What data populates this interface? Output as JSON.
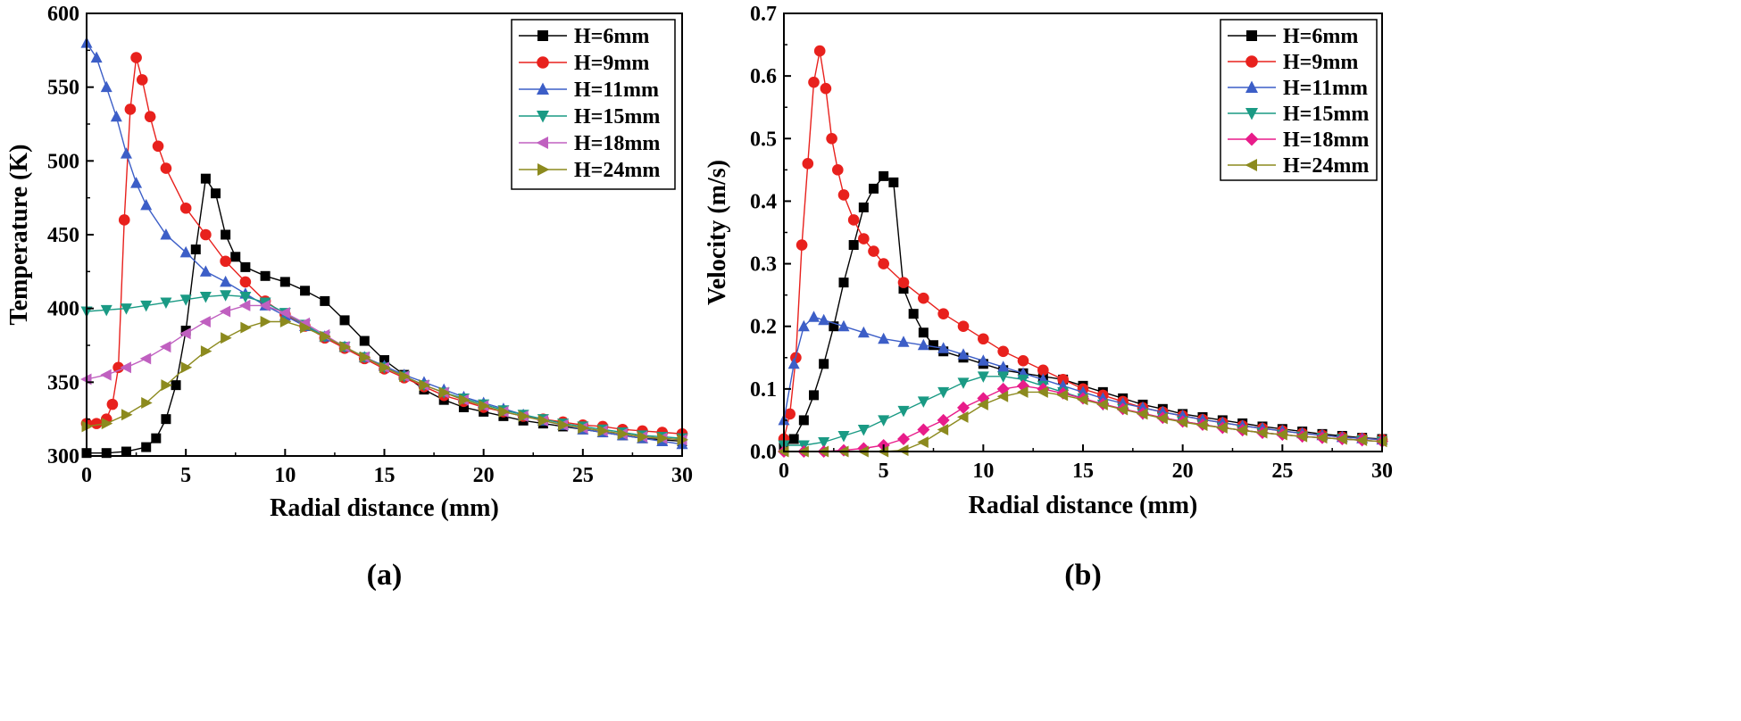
{
  "chart_data": [
    {
      "type": "line",
      "caption": "(a)",
      "xlabel": "Radial distance (mm)",
      "ylabel": "Temperature (K)",
      "xlim": [
        0,
        30
      ],
      "ylim": [
        300,
        600
      ],
      "xticks": [
        0,
        5,
        10,
        15,
        20,
        25,
        30
      ],
      "yticks": [
        300,
        350,
        400,
        450,
        500,
        550,
        600
      ],
      "grid": false,
      "legend_position": "top-right",
      "series": [
        {
          "name": "H=6mm",
          "color": "#000000",
          "marker": "square",
          "x": [
            0,
            1,
            2,
            3,
            3.5,
            4,
            4.5,
            5,
            5.5,
            6,
            6.5,
            7,
            7.5,
            8,
            9,
            10,
            11,
            12,
            13,
            14,
            15,
            16,
            17,
            18,
            19,
            20,
            21,
            22,
            23,
            24,
            25,
            26,
            27,
            28,
            29,
            30
          ],
          "y": [
            302,
            302,
            303,
            306,
            312,
            325,
            348,
            385,
            440,
            488,
            478,
            450,
            435,
            428,
            422,
            418,
            412,
            405,
            392,
            378,
            365,
            355,
            345,
            338,
            333,
            330,
            327,
            324,
            322,
            320,
            318,
            316,
            314,
            312,
            311,
            310
          ]
        },
        {
          "name": "H=9mm",
          "color": "#e8211d",
          "marker": "circle",
          "x": [
            0,
            0.5,
            1,
            1.3,
            1.6,
            1.9,
            2.2,
            2.5,
            2.8,
            3.2,
            3.6,
            4,
            5,
            6,
            7,
            8,
            9,
            10,
            11,
            12,
            13,
            14,
            15,
            16,
            17,
            18,
            19,
            20,
            21,
            22,
            23,
            24,
            25,
            26,
            27,
            28,
            29,
            30
          ],
          "y": [
            322,
            322,
            325,
            335,
            360,
            460,
            535,
            570,
            555,
            530,
            510,
            495,
            468,
            450,
            432,
            418,
            405,
            396,
            388,
            380,
            373,
            366,
            359,
            353,
            347,
            341,
            337,
            333,
            330,
            327,
            325,
            323,
            321,
            320,
            318,
            317,
            316,
            315
          ]
        },
        {
          "name": "H=11mm",
          "color": "#3c5ec7",
          "marker": "triangle-up",
          "x": [
            0,
            0.5,
            1,
            1.5,
            2,
            2.5,
            3,
            4,
            5,
            6,
            7,
            8,
            9,
            10,
            11,
            12,
            13,
            14,
            15,
            16,
            17,
            18,
            19,
            20,
            21,
            22,
            23,
            24,
            25,
            26,
            27,
            28,
            29,
            30
          ],
          "y": [
            580,
            570,
            550,
            530,
            505,
            485,
            470,
            450,
            438,
            425,
            418,
            410,
            402,
            395,
            388,
            381,
            374,
            367,
            361,
            355,
            350,
            345,
            340,
            336,
            332,
            328,
            324,
            321,
            318,
            316,
            314,
            312,
            310,
            308
          ]
        },
        {
          "name": "H=15mm",
          "color": "#1a9a84",
          "marker": "triangle-down",
          "x": [
            0,
            1,
            2,
            3,
            4,
            5,
            6,
            7,
            8,
            9,
            10,
            11,
            12,
            13,
            14,
            15,
            16,
            17,
            18,
            19,
            20,
            21,
            22,
            23,
            24,
            25,
            26,
            27,
            28,
            29,
            30
          ],
          "y": [
            398,
            399,
            400,
            402,
            404,
            406,
            408,
            409,
            408,
            404,
            397,
            389,
            381,
            374,
            367,
            360,
            354,
            348,
            343,
            339,
            335,
            331,
            328,
            325,
            322,
            320,
            318,
            316,
            314,
            313,
            312
          ]
        },
        {
          "name": "H=18mm",
          "color": "#c060c0",
          "marker": "triangle-left",
          "x": [
            0,
            1,
            2,
            3,
            4,
            5,
            6,
            7,
            8,
            9,
            10,
            11,
            12,
            13,
            14,
            15,
            16,
            17,
            18,
            19,
            20,
            21,
            22,
            23,
            24,
            25,
            26,
            27,
            28,
            29,
            30
          ],
          "y": [
            352,
            355,
            360,
            366,
            374,
            383,
            391,
            398,
            402,
            402,
            397,
            390,
            382,
            374,
            367,
            360,
            354,
            348,
            343,
            338,
            334,
            330,
            327,
            324,
            321,
            319,
            317,
            315,
            313,
            312,
            311
          ]
        },
        {
          "name": "H=24mm",
          "color": "#8c8a1e",
          "marker": "triangle-right",
          "x": [
            0,
            1,
            2,
            3,
            4,
            5,
            6,
            7,
            8,
            9,
            10,
            11,
            12,
            13,
            14,
            15,
            16,
            17,
            18,
            19,
            20,
            21,
            22,
            23,
            24,
            25,
            26,
            27,
            28,
            29,
            30
          ],
          "y": [
            320,
            322,
            328,
            336,
            348,
            360,
            371,
            380,
            387,
            391,
            391,
            387,
            381,
            374,
            367,
            360,
            354,
            348,
            343,
            338,
            334,
            330,
            327,
            324,
            321,
            319,
            317,
            315,
            313,
            312,
            311
          ]
        }
      ]
    },
    {
      "type": "line",
      "caption": "(b)",
      "xlabel": "Radial distance (mm)",
      "ylabel": "Velocity (m/s)",
      "xlim": [
        0,
        30
      ],
      "ylim": [
        0,
        0.7
      ],
      "xticks": [
        0,
        5,
        10,
        15,
        20,
        25,
        30
      ],
      "yticks": [
        0.0,
        0.1,
        0.2,
        0.3,
        0.4,
        0.5,
        0.6,
        0.7
      ],
      "ytick_labels": [
        "0.0",
        "0.1",
        "0.2",
        "0.3",
        "0.4",
        "0.5",
        "0.6",
        "0.7"
      ],
      "grid": false,
      "legend_position": "top-right",
      "series": [
        {
          "name": "H=6mm",
          "color": "#000000",
          "marker": "square",
          "x": [
            0,
            0.5,
            1,
            1.5,
            2,
            2.5,
            3,
            3.5,
            4,
            4.5,
            5,
            5.5,
            6,
            6.5,
            7,
            7.5,
            8,
            9,
            10,
            11,
            12,
            13,
            14,
            15,
            16,
            17,
            18,
            19,
            20,
            21,
            22,
            23,
            24,
            25,
            26,
            27,
            28,
            29,
            30
          ],
          "y": [
            0.01,
            0.02,
            0.05,
            0.09,
            0.14,
            0.2,
            0.27,
            0.33,
            0.39,
            0.42,
            0.44,
            0.43,
            0.26,
            0.22,
            0.19,
            0.17,
            0.16,
            0.15,
            0.14,
            0.13,
            0.125,
            0.12,
            0.115,
            0.105,
            0.095,
            0.085,
            0.075,
            0.068,
            0.06,
            0.055,
            0.05,
            0.045,
            0.04,
            0.036,
            0.032,
            0.028,
            0.025,
            0.022,
            0.02
          ]
        },
        {
          "name": "H=9mm",
          "color": "#e8211d",
          "marker": "circle",
          "x": [
            0,
            0.3,
            0.6,
            0.9,
            1.2,
            1.5,
            1.8,
            2.1,
            2.4,
            2.7,
            3,
            3.5,
            4,
            4.5,
            5,
            6,
            7,
            8,
            9,
            10,
            11,
            12,
            13,
            14,
            15,
            16,
            17,
            18,
            19,
            20,
            21,
            22,
            23,
            24,
            25,
            26,
            27,
            28,
            29,
            30
          ],
          "y": [
            0.02,
            0.06,
            0.15,
            0.33,
            0.46,
            0.59,
            0.64,
            0.58,
            0.5,
            0.45,
            0.41,
            0.37,
            0.34,
            0.32,
            0.3,
            0.27,
            0.245,
            0.22,
            0.2,
            0.18,
            0.16,
            0.145,
            0.13,
            0.115,
            0.1,
            0.09,
            0.08,
            0.07,
            0.063,
            0.057,
            0.051,
            0.046,
            0.041,
            0.037,
            0.033,
            0.029,
            0.026,
            0.023,
            0.021,
            0.019
          ]
        },
        {
          "name": "H=11mm",
          "color": "#3c5ec7",
          "marker": "triangle-up",
          "x": [
            0,
            0.5,
            1,
            1.5,
            2,
            3,
            4,
            5,
            6,
            7,
            8,
            9,
            10,
            11,
            12,
            13,
            14,
            15,
            16,
            17,
            18,
            19,
            20,
            21,
            22,
            23,
            24,
            25,
            26,
            27,
            28,
            29,
            30
          ],
          "y": [
            0.05,
            0.14,
            0.2,
            0.215,
            0.21,
            0.2,
            0.19,
            0.18,
            0.175,
            0.17,
            0.165,
            0.155,
            0.145,
            0.135,
            0.125,
            0.115,
            0.105,
            0.095,
            0.085,
            0.077,
            0.07,
            0.063,
            0.057,
            0.051,
            0.046,
            0.041,
            0.037,
            0.033,
            0.029,
            0.026,
            0.023,
            0.021,
            0.019
          ]
        },
        {
          "name": "H=15mm",
          "color": "#1a9a84",
          "marker": "triangle-down",
          "x": [
            0,
            1,
            2,
            3,
            4,
            5,
            6,
            7,
            8,
            9,
            10,
            11,
            12,
            13,
            14,
            15,
            16,
            17,
            18,
            19,
            20,
            21,
            22,
            23,
            24,
            25,
            26,
            27,
            28,
            29,
            30
          ],
          "y": [
            0.01,
            0.01,
            0.015,
            0.025,
            0.035,
            0.05,
            0.065,
            0.08,
            0.095,
            0.11,
            0.12,
            0.12,
            0.115,
            0.105,
            0.095,
            0.085,
            0.075,
            0.068,
            0.06,
            0.054,
            0.048,
            0.043,
            0.038,
            0.034,
            0.03,
            0.027,
            0.024,
            0.022,
            0.02,
            0.018,
            0.016
          ]
        },
        {
          "name": "H=18mm",
          "color": "#e81c8a",
          "marker": "diamond",
          "x": [
            0,
            1,
            2,
            3,
            4,
            5,
            6,
            7,
            8,
            9,
            10,
            11,
            12,
            13,
            14,
            15,
            16,
            17,
            18,
            19,
            20,
            21,
            22,
            23,
            24,
            25,
            26,
            27,
            28,
            29,
            30
          ],
          "y": [
            0.0,
            0.0,
            0.0,
            0.002,
            0.005,
            0.01,
            0.02,
            0.035,
            0.05,
            0.07,
            0.085,
            0.1,
            0.105,
            0.1,
            0.093,
            0.085,
            0.076,
            0.068,
            0.061,
            0.054,
            0.048,
            0.043,
            0.038,
            0.034,
            0.03,
            0.027,
            0.024,
            0.022,
            0.02,
            0.018,
            0.016
          ]
        },
        {
          "name": "H=24mm",
          "color": "#8c8a1e",
          "marker": "triangle-left",
          "x": [
            0,
            1,
            2,
            3,
            4,
            5,
            6,
            7,
            8,
            9,
            10,
            11,
            12,
            13,
            14,
            15,
            16,
            17,
            18,
            19,
            20,
            21,
            22,
            23,
            24,
            25,
            26,
            27,
            28,
            29,
            30
          ],
          "y": [
            0.0,
            0.0,
            0.0,
            0.0,
            0.0,
            0.0,
            0.002,
            0.015,
            0.035,
            0.055,
            0.075,
            0.088,
            0.095,
            0.095,
            0.09,
            0.083,
            0.075,
            0.067,
            0.06,
            0.053,
            0.047,
            0.042,
            0.038,
            0.034,
            0.03,
            0.027,
            0.024,
            0.022,
            0.02,
            0.018,
            0.016
          ]
        }
      ]
    }
  ]
}
